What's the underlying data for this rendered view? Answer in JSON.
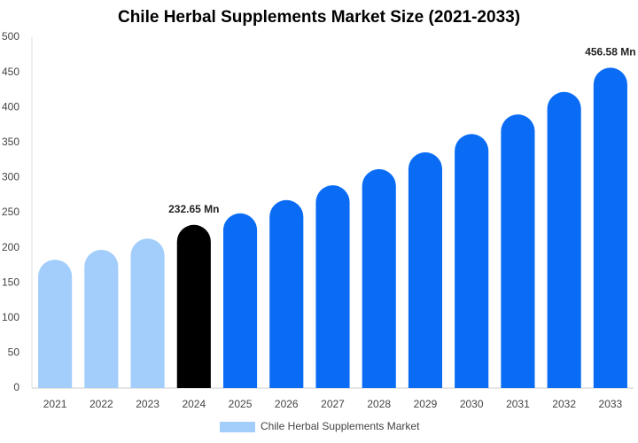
{
  "chart_data": {
    "type": "bar",
    "title": "Chile Herbal Supplements Market Size (2021-2033)",
    "categories": [
      "2021",
      "2022",
      "2023",
      "2024",
      "2025",
      "2026",
      "2027",
      "2028",
      "2029",
      "2030",
      "2031",
      "2032",
      "2033"
    ],
    "series": [
      {
        "name": "Chile Herbal Supplements Market",
        "color": "#a3cdfb",
        "colors": [
          "#a3cdfb",
          "#a3cdfb",
          "#a3cdfb",
          "#000000",
          "#0a6cf5",
          "#0a6cf5",
          "#0a6cf5",
          "#0a6cf5",
          "#0a6cf5",
          "#0a6cf5",
          "#0a6cf5",
          "#0a6cf5",
          "#0a6cf5"
        ],
        "values": [
          183,
          197,
          213,
          232.65,
          249,
          268,
          289,
          312,
          336,
          362,
          390,
          422,
          456.58
        ],
        "value_labels": [
          null,
          null,
          null,
          "232.65 Mn",
          null,
          null,
          null,
          null,
          null,
          null,
          null,
          null,
          "456.58 Mn"
        ]
      }
    ],
    "ylim": [
      0,
      500
    ],
    "yticks": [
      0,
      50,
      100,
      150,
      200,
      250,
      300,
      350,
      400,
      450,
      500
    ],
    "grid": false,
    "legend": "bottom"
  }
}
